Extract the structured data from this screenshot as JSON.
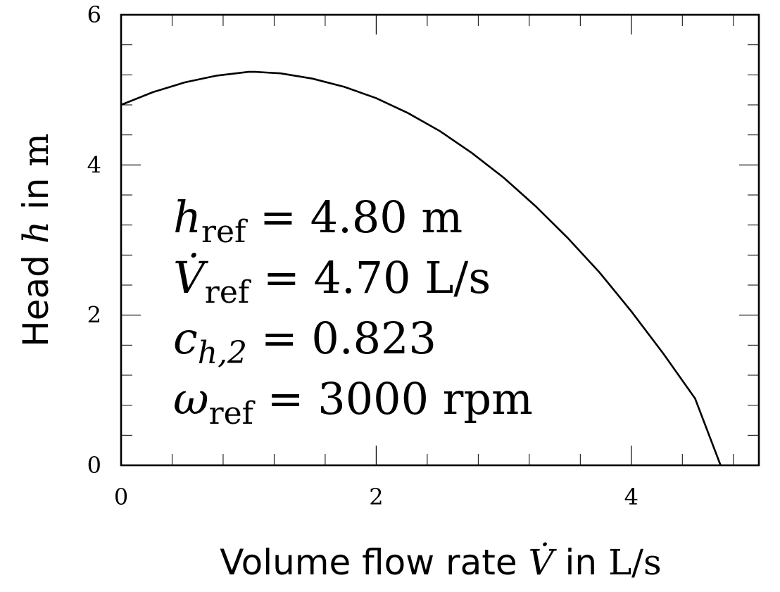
{
  "chart_data": {
    "type": "line",
    "xlabel": "Volume flow rate V̇ in L/s",
    "xlabel_parts": {
      "text": "Volume flow rate ",
      "symbol": "V̇",
      "in": " in ",
      "unit": "L/s"
    },
    "ylabel": "Head h in m",
    "ylabel_parts": {
      "text": "Head ",
      "symbol": "h",
      "in": " in ",
      "unit": "m"
    },
    "xlim": [
      0,
      5
    ],
    "ylim": [
      0,
      6
    ],
    "xticks": [
      0,
      2,
      4
    ],
    "xtick_labels": [
      "0",
      "2",
      "4"
    ],
    "yticks": [
      0,
      2,
      4,
      6
    ],
    "ytick_labels": [
      "0",
      "2",
      "4",
      "6"
    ],
    "grid": false,
    "series": [
      {
        "x": [
          0,
          0.25,
          0.5,
          0.75,
          1.0,
          1.05,
          1.25,
          1.5,
          1.75,
          2.0,
          2.25,
          2.5,
          2.75,
          3.0,
          3.25,
          3.5,
          3.75,
          4.0,
          4.25,
          4.5,
          4.7
        ],
        "y": [
          4.8,
          4.97,
          5.1,
          5.19,
          5.24,
          5.24,
          5.22,
          5.15,
          5.04,
          4.89,
          4.69,
          4.45,
          4.16,
          3.83,
          3.45,
          3.03,
          2.57,
          2.05,
          1.49,
          0.89,
          0.0
        ]
      }
    ],
    "annotations": [
      {
        "symbol": "h",
        "sub": "ref",
        "rhs": "= 4.80",
        "unit": "m"
      },
      {
        "symbol": "V̇",
        "sub": "ref",
        "rhs": "= 4.70",
        "unit": "L/s"
      },
      {
        "symbol": "c",
        "sub": "h,2",
        "rhs": "= 0.823",
        "unit": ""
      },
      {
        "symbol": "ω",
        "sub": "ref",
        "rhs": "= 3000",
        "unit": "rpm"
      }
    ]
  }
}
